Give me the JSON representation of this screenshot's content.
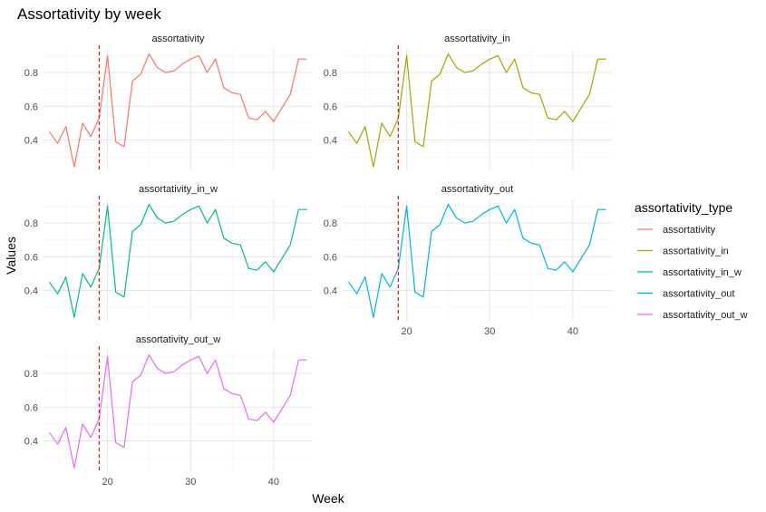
{
  "chart_data": {
    "type": "line",
    "title": "Assortativity by week",
    "xlabel": "Week",
    "ylabel": "Values",
    "legend_title": "assortativity_type",
    "legend_position": "right",
    "grid": true,
    "xlim": [
      12.3,
      44.7
    ],
    "ylim": [
      0.22,
      0.94
    ],
    "xticks": [
      20,
      30,
      40
    ],
    "yticks": [
      0.4,
      0.6,
      0.8
    ],
    "vline": {
      "x": 19,
      "color": "#e41a1c",
      "style": "dashed"
    },
    "x": [
      13,
      14,
      15,
      16,
      17,
      18,
      19,
      20,
      21,
      22,
      23,
      24,
      25,
      26,
      27,
      28,
      29,
      30,
      31,
      32,
      33,
      34,
      35,
      36,
      37,
      38,
      39,
      40,
      41,
      42,
      43,
      44
    ],
    "series": [
      {
        "name": "assortativity",
        "color": "#F8766D",
        "values": [
          0.45,
          0.38,
          0.48,
          0.24,
          0.5,
          0.42,
          0.53,
          0.9,
          0.39,
          0.36,
          0.75,
          0.79,
          0.91,
          0.83,
          0.8,
          0.81,
          0.85,
          0.88,
          0.9,
          0.8,
          0.88,
          0.71,
          0.68,
          0.67,
          0.53,
          0.52,
          0.57,
          0.51,
          0.59,
          0.67,
          0.88,
          0.88
        ]
      },
      {
        "name": "assortativity_in",
        "color": "#A3A500",
        "values": [
          0.45,
          0.38,
          0.48,
          0.24,
          0.5,
          0.42,
          0.53,
          0.9,
          0.39,
          0.36,
          0.75,
          0.79,
          0.91,
          0.83,
          0.8,
          0.81,
          0.85,
          0.88,
          0.9,
          0.8,
          0.88,
          0.71,
          0.68,
          0.67,
          0.53,
          0.52,
          0.57,
          0.51,
          0.59,
          0.67,
          0.88,
          0.88
        ]
      },
      {
        "name": "assortativity_in_w",
        "color": "#00BF7D",
        "values": [
          0.45,
          0.38,
          0.48,
          0.24,
          0.5,
          0.42,
          0.53,
          0.9,
          0.39,
          0.36,
          0.75,
          0.79,
          0.91,
          0.83,
          0.8,
          0.81,
          0.85,
          0.88,
          0.9,
          0.8,
          0.88,
          0.71,
          0.68,
          0.67,
          0.53,
          0.52,
          0.57,
          0.51,
          0.59,
          0.67,
          0.88,
          0.88
        ]
      },
      {
        "name": "assortativity_out",
        "color": "#00B0F6",
        "values": [
          0.45,
          0.38,
          0.48,
          0.24,
          0.5,
          0.42,
          0.53,
          0.9,
          0.39,
          0.36,
          0.75,
          0.79,
          0.91,
          0.83,
          0.8,
          0.81,
          0.85,
          0.88,
          0.9,
          0.8,
          0.88,
          0.71,
          0.68,
          0.67,
          0.53,
          0.52,
          0.57,
          0.51,
          0.59,
          0.67,
          0.88,
          0.88
        ]
      },
      {
        "name": "assortativity_out_w",
        "color": "#E76BF3",
        "values": [
          0.45,
          0.38,
          0.48,
          0.24,
          0.5,
          0.42,
          0.53,
          0.9,
          0.39,
          0.36,
          0.75,
          0.79,
          0.91,
          0.83,
          0.8,
          0.81,
          0.85,
          0.88,
          0.9,
          0.8,
          0.88,
          0.71,
          0.68,
          0.67,
          0.53,
          0.52,
          0.57,
          0.51,
          0.59,
          0.67,
          0.88,
          0.88
        ]
      }
    ]
  }
}
